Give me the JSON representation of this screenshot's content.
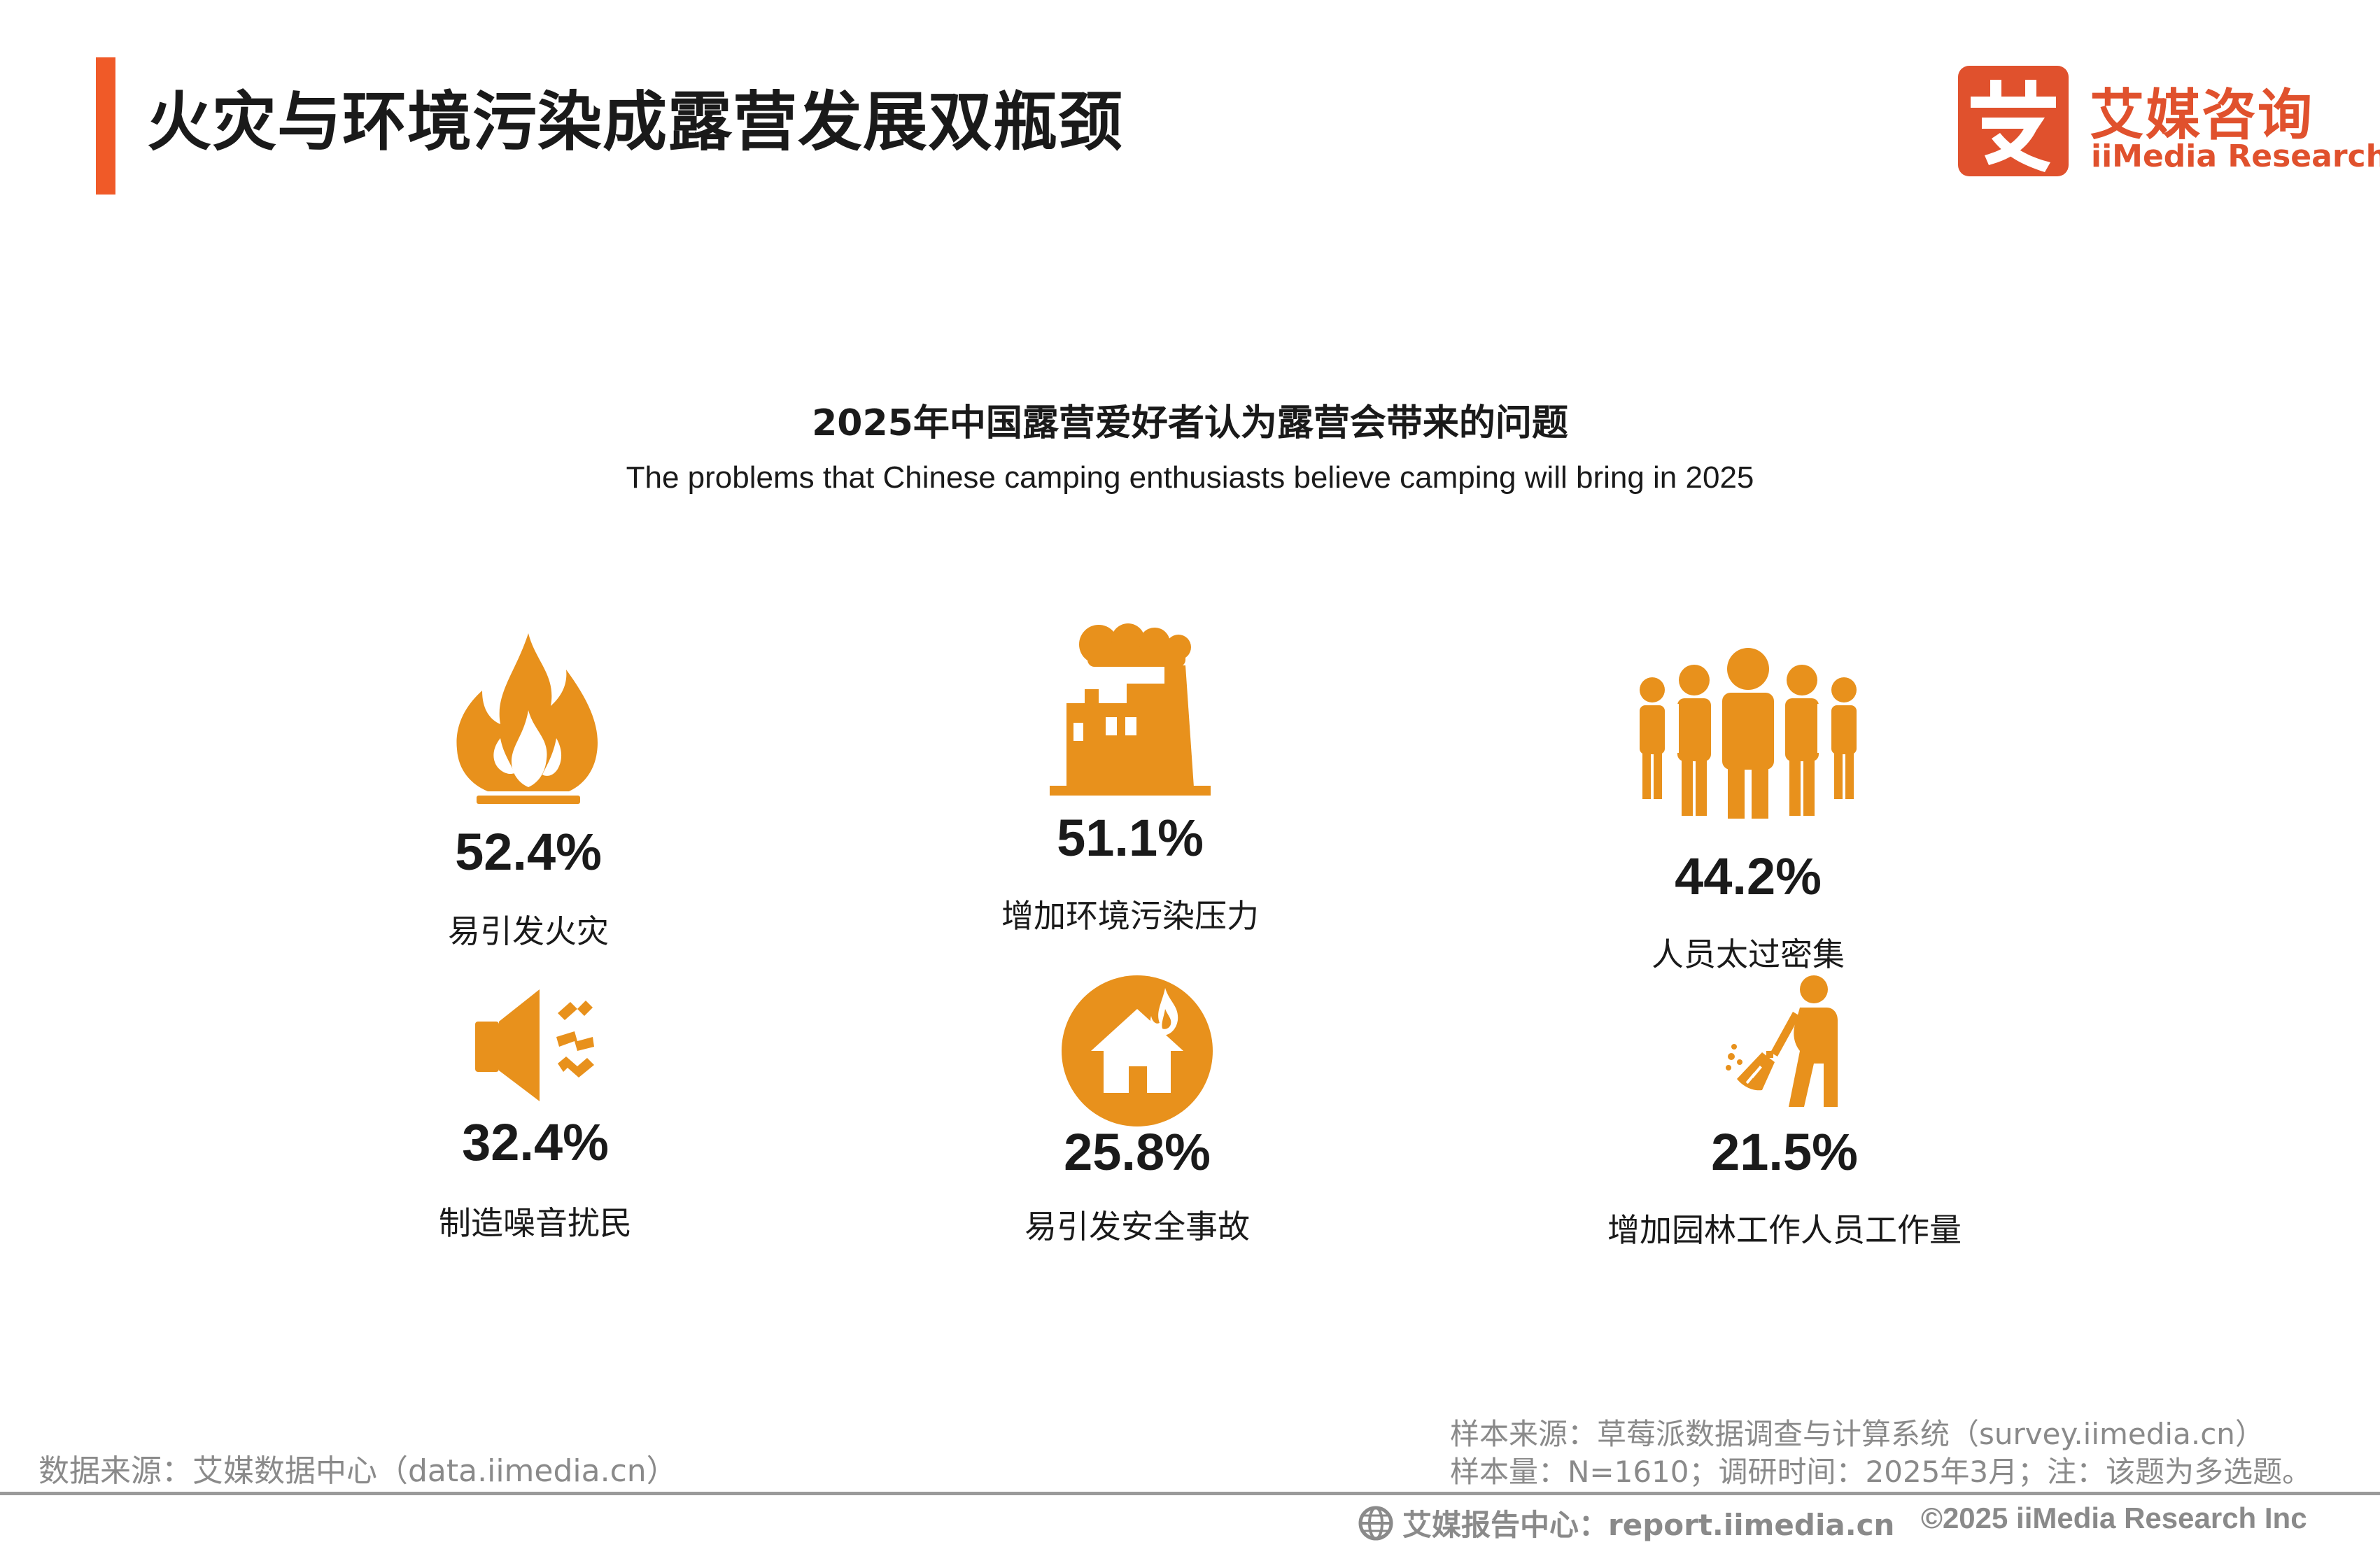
{
  "header": {
    "title": "火灾与环境污染成露营发展双瓶颈",
    "accent_color": "#f05a28"
  },
  "logo": {
    "glyph": "艾",
    "name_cn": "艾媒咨询",
    "name_en": "iiMedia Research",
    "color": "#e0512d"
  },
  "chart_data": {
    "type": "pictograph",
    "title": "2025年中国露营爱好者认为露营会带来的问题",
    "subtitle": "The problems that Chinese camping enthusiasts believe camping will bring in 2025",
    "icon_color": "#e8911c",
    "unit": "%",
    "items": [
      {
        "label": "易引发火灾",
        "value": 52.4,
        "display": "52.4%",
        "icon": "fire-icon"
      },
      {
        "label": "增加环境污染压力",
        "value": 51.1,
        "display": "51.1%",
        "icon": "factory-icon"
      },
      {
        "label": "人员太过密集",
        "value": 44.2,
        "display": "44.2%",
        "icon": "crowd-icon"
      },
      {
        "label": "制造噪音扰民",
        "value": 32.4,
        "display": "32.4%",
        "icon": "speaker-icon"
      },
      {
        "label": "易引发安全事故",
        "value": 25.8,
        "display": "25.8%",
        "icon": "house-fire-icon"
      },
      {
        "label": "增加园林工作人员工作量",
        "value": 21.5,
        "display": "21.5%",
        "icon": "sweeper-icon"
      }
    ]
  },
  "footer": {
    "data_source": "数据来源：艾媒数据中心（data.iimedia.cn）",
    "sample_source": "样本来源：草莓派数据调查与计算系统（survey.iimedia.cn）",
    "sample_info": "样本量：N=1610；调研时间：2025年3月；注：该题为多选题。",
    "report_center": "艾媒报告中心：report.iimedia.cn",
    "copyright": "©2025  iiMedia Research  Inc"
  }
}
